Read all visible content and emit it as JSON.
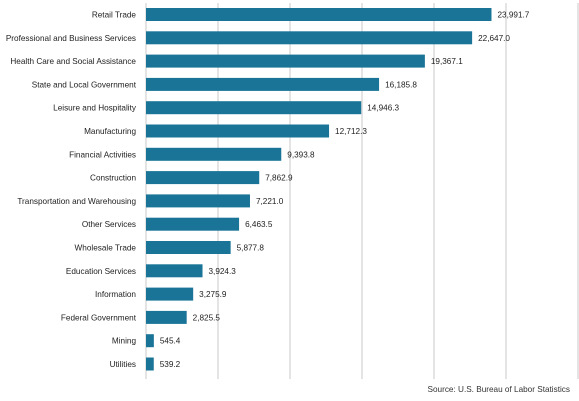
{
  "chart_data": {
    "type": "bar",
    "orientation": "horizontal",
    "categories": [
      "Retail Trade",
      "Professional and Business Services",
      "Health Care and Social Assistance",
      "State and Local Government",
      "Leisure and Hospitality",
      "Manufacturing",
      "Financial Activities",
      "Construction",
      "Transportation and Warehousing",
      "Other Services",
      "Wholesale Trade",
      "Education Services",
      "Information",
      "Federal Government",
      "Mining",
      "Utilities"
    ],
    "values": [
      23991.7,
      22647.0,
      19367.1,
      16185.8,
      14946.3,
      12712.3,
      9393.8,
      7862.9,
      7221.0,
      6463.5,
      5877.8,
      3924.3,
      3275.9,
      2825.5,
      545.4,
      539.2
    ],
    "value_labels": [
      "23,991.7",
      "22,647.0",
      "19,367.1",
      "16,185.8",
      "14,946.3",
      "12,712.3",
      "9,393.8",
      "7,862.9",
      "7,221.0",
      "6,463.5",
      "5,877.8",
      "3,924.3",
      "3,275.9",
      "2,825.5",
      "545.4",
      "539.2"
    ],
    "xlim": [
      0,
      30000
    ],
    "grid": true,
    "bar_color": "#1a7497",
    "grid_color": "#c8c8c8"
  },
  "source": "Source: U.S. Bureau of Labor Statistics"
}
